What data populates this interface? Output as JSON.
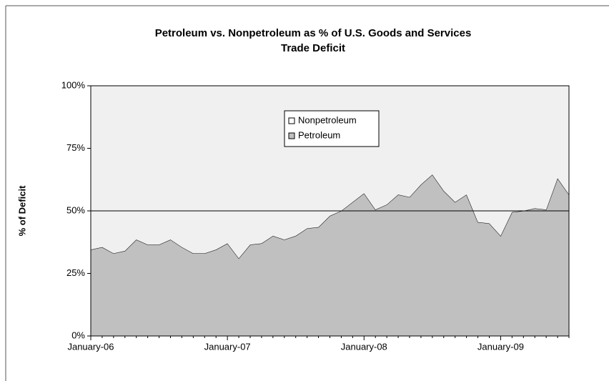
{
  "chart_data": {
    "type": "stacked_area",
    "title": [
      "Petroleum vs. Nonpetroleum as % of U.S. Goods and Services",
      "Trade Deficit"
    ],
    "y_label": "% of Deficit",
    "categories": [
      "January-06",
      null,
      null,
      null,
      null,
      null,
      null,
      null,
      null,
      null,
      null,
      null,
      "January-07",
      null,
      null,
      null,
      null,
      null,
      null,
      null,
      null,
      null,
      null,
      null,
      "January-08",
      null,
      null,
      null,
      null,
      null,
      null,
      null,
      null,
      null,
      null,
      null,
      "January-09",
      null,
      null,
      null,
      null,
      null,
      null
    ],
    "series": [
      {
        "name": "Petroleum",
        "color": "#c0c0c0",
        "values": [
          34.5,
          35.5,
          33,
          34,
          38.5,
          36.5,
          36.5,
          38.5,
          35.5,
          33,
          33,
          34.5,
          37,
          31,
          36.5,
          37,
          40,
          38.5,
          40,
          43,
          43.5,
          48,
          50,
          53.5,
          57,
          50.5,
          52.5,
          56.5,
          55.5,
          60.5,
          64.5,
          58,
          53.5,
          56.5,
          45.5,
          45,
          40,
          49.5,
          50,
          51,
          50.5,
          63,
          56.5
        ]
      },
      {
        "name": "Nonpetroleum",
        "color": "#f0f0f0",
        "values": [
          65.5,
          64.5,
          67,
          66,
          61.5,
          63.5,
          63.5,
          61.5,
          64.5,
          67,
          67,
          65.5,
          63,
          69,
          63.5,
          63,
          60,
          61.5,
          60,
          57,
          56.5,
          52,
          50,
          46.5,
          43,
          49.5,
          47.5,
          43.5,
          44.5,
          39.5,
          35.5,
          42,
          46.5,
          43.5,
          54.5,
          55,
          60,
          50.5,
          50,
          49,
          49.5,
          37,
          43.5
        ]
      }
    ],
    "ylim": [
      0,
      100
    ],
    "yticks": [
      {
        "value": 0,
        "label": "0%"
      },
      {
        "value": 25,
        "label": "25%"
      },
      {
        "value": 50,
        "label": "50%"
      },
      {
        "value": 75,
        "label": "75%"
      },
      {
        "value": 100,
        "label": "100%"
      }
    ],
    "reference_line": 50,
    "legend": "top-center"
  }
}
